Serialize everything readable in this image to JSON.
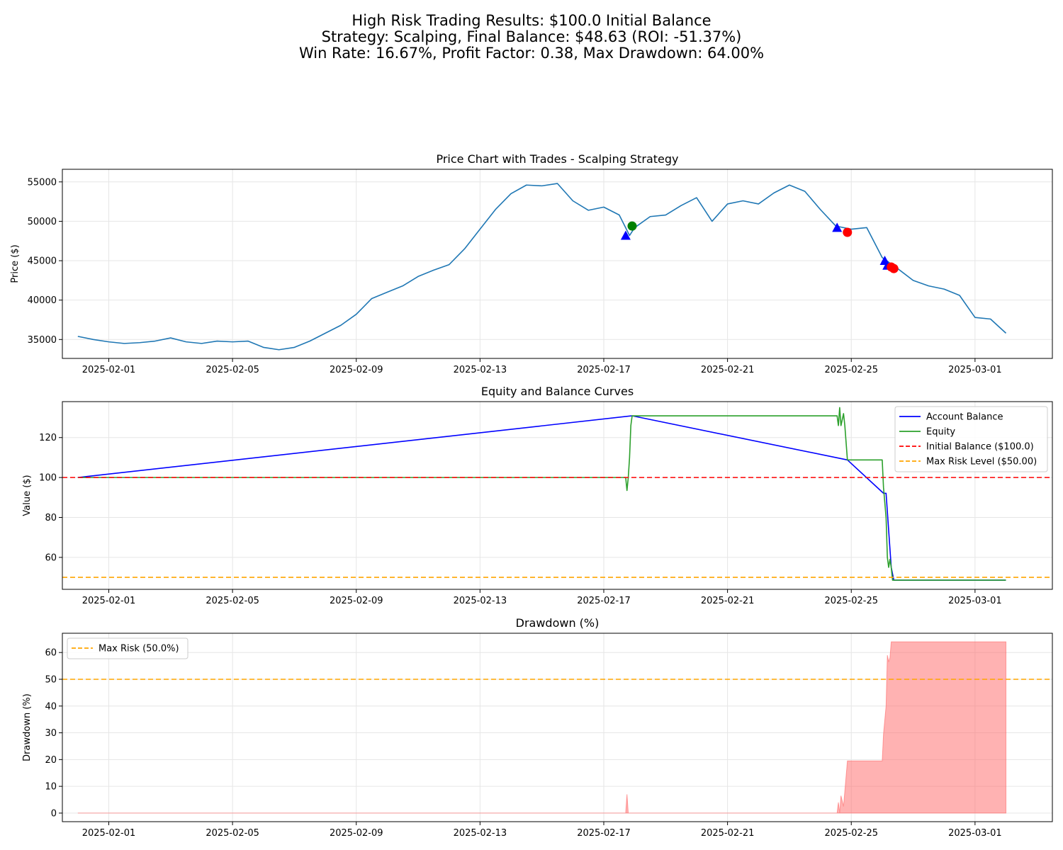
{
  "figure": {
    "title_lines": [
      "High Risk Trading Results: $100.0 Initial Balance",
      "Strategy: Scalping, Final Balance: $48.63 (ROI: -51.37%)",
      "Win Rate: 16.67%, Profit Factor: 0.38, Max Drawdown: 64.00%"
    ]
  },
  "chart_data": [
    {
      "type": "line",
      "title": "Price Chart with Trades - Scalping Strategy",
      "xlabel": "",
      "ylabel": "Price ($)",
      "xlim": [
        "2025-01-30T12:00",
        "2025-03-03T12:00"
      ],
      "ylim": [
        32600,
        56600
      ],
      "x_ticks": [
        "2025-02-01",
        "2025-02-05",
        "2025-02-09",
        "2025-02-13",
        "2025-02-17",
        "2025-02-21",
        "2025-02-25",
        "2025-03-01"
      ],
      "y_ticks": [
        35000,
        40000,
        45000,
        50000,
        55000
      ],
      "grid": true,
      "series": [
        {
          "color": "#1f77b4",
          "points": [
            [
              "2025-01-31T00:00",
              35400
            ],
            [
              "2025-01-31T12:00",
              35000
            ],
            [
              "2025-02-01T00:00",
              34700
            ],
            [
              "2025-02-01T12:00",
              34500
            ],
            [
              "2025-02-02T00:00",
              34600
            ],
            [
              "2025-02-02T12:00",
              34800
            ],
            [
              "2025-02-03T00:00",
              35200
            ],
            [
              "2025-02-03T12:00",
              34700
            ],
            [
              "2025-02-04T00:00",
              34500
            ],
            [
              "2025-02-04T12:00",
              34800
            ],
            [
              "2025-02-05T00:00",
              34700
            ],
            [
              "2025-02-05T12:00",
              34800
            ],
            [
              "2025-02-06T00:00",
              34000
            ],
            [
              "2025-02-06T12:00",
              33700
            ],
            [
              "2025-02-07T00:00",
              34000
            ],
            [
              "2025-02-07T12:00",
              34800
            ],
            [
              "2025-02-08T00:00",
              35800
            ],
            [
              "2025-02-08T12:00",
              36800
            ],
            [
              "2025-02-09T00:00",
              38200
            ],
            [
              "2025-02-09T12:00",
              40200
            ],
            [
              "2025-02-10T00:00",
              41000
            ],
            [
              "2025-02-10T12:00",
              41800
            ],
            [
              "2025-02-11T00:00",
              43000
            ],
            [
              "2025-02-11T12:00",
              43800
            ],
            [
              "2025-02-12T00:00",
              44500
            ],
            [
              "2025-02-12T12:00",
              46500
            ],
            [
              "2025-02-13T00:00",
              49000
            ],
            [
              "2025-02-13T12:00",
              51500
            ],
            [
              "2025-02-14T00:00",
              53500
            ],
            [
              "2025-02-14T12:00",
              54600
            ],
            [
              "2025-02-15T00:00",
              54500
            ],
            [
              "2025-02-15T12:00",
              54800
            ],
            [
              "2025-02-16T00:00",
              52600
            ],
            [
              "2025-02-16T12:00",
              51400
            ],
            [
              "2025-02-17T00:00",
              51800
            ],
            [
              "2025-02-17T12:00",
              50800
            ],
            [
              "2025-02-17T20:00",
              48200
            ],
            [
              "2025-02-18T00:00",
              49200
            ],
            [
              "2025-02-18T12:00",
              50600
            ],
            [
              "2025-02-19T00:00",
              50800
            ],
            [
              "2025-02-19T12:00",
              52000
            ],
            [
              "2025-02-20T00:00",
              53000
            ],
            [
              "2025-02-20T12:00",
              50000
            ],
            [
              "2025-02-21T00:00",
              52200
            ],
            [
              "2025-02-21T12:00",
              52600
            ],
            [
              "2025-02-22T00:00",
              52200
            ],
            [
              "2025-02-22T12:00",
              53600
            ],
            [
              "2025-02-23T00:00",
              54600
            ],
            [
              "2025-02-23T12:00",
              53800
            ],
            [
              "2025-02-24T00:00",
              51500
            ],
            [
              "2025-02-24T12:00",
              49400
            ],
            [
              "2025-02-25T00:00",
              49000
            ],
            [
              "2025-02-25T12:00",
              49200
            ],
            [
              "2025-02-26T00:00",
              45400
            ],
            [
              "2025-02-26T12:00",
              44000
            ],
            [
              "2025-02-27T00:00",
              42500
            ],
            [
              "2025-02-27T12:00",
              41800
            ],
            [
              "2025-02-28T00:00",
              41400
            ],
            [
              "2025-02-28T12:00",
              40600
            ],
            [
              "2025-03-01T00:00",
              37800
            ],
            [
              "2025-03-01T12:00",
              37600
            ],
            [
              "2025-03-02T00:00",
              35800
            ]
          ]
        }
      ],
      "markers": [
        {
          "marker": "triangle",
          "color": "#0000ff",
          "x": "2025-02-17T17:00",
          "y": 48200
        },
        {
          "marker": "circle",
          "color": "#008000",
          "x": "2025-02-17T22:00",
          "y": 49400
        },
        {
          "marker": "triangle",
          "color": "#0000ff",
          "x": "2025-02-24T13:00",
          "y": 49200
        },
        {
          "marker": "circle",
          "color": "#ff0000",
          "x": "2025-02-24T21:00",
          "y": 48600
        },
        {
          "marker": "triangle",
          "color": "#0000ff",
          "x": "2025-02-26T02:00",
          "y": 45000
        },
        {
          "marker": "triangle",
          "color": "#0000ff",
          "x": "2025-02-26T04:00",
          "y": 44400
        },
        {
          "marker": "circle",
          "color": "#ff0000",
          "x": "2025-02-26T07:00",
          "y": 44200
        },
        {
          "marker": "circle",
          "color": "#ff0000",
          "x": "2025-02-26T09:00",
          "y": 44000
        }
      ]
    },
    {
      "type": "line",
      "title": "Equity and Balance Curves",
      "xlabel": "",
      "ylabel": "Value ($)",
      "xlim": [
        "2025-01-30T12:00",
        "2025-03-03T12:00"
      ],
      "ylim": [
        44,
        138
      ],
      "x_ticks": [
        "2025-02-01",
        "2025-02-05",
        "2025-02-09",
        "2025-02-13",
        "2025-02-17",
        "2025-02-21",
        "2025-02-25",
        "2025-03-01"
      ],
      "y_ticks": [
        60,
        80,
        100,
        120
      ],
      "grid": true,
      "legend_position": "top-right",
      "series": [
        {
          "name": "Account Balance",
          "color": "#0000ff",
          "points": [
            [
              "2025-01-31T00:00",
              100
            ],
            [
              "2025-02-17T22:00",
              130.9
            ],
            [
              "2025-02-24T21:00",
              108.8
            ],
            [
              "2025-02-26T01:00",
              92.1
            ],
            [
              "2025-02-26T03:00",
              92.1
            ],
            [
              "2025-02-26T07:00",
              55
            ],
            [
              "2025-02-26T09:00",
              48.6
            ],
            [
              "2025-03-02T00:00",
              48.6
            ]
          ]
        },
        {
          "name": "Equity",
          "color": "#2ca02c",
          "points": [
            [
              "2025-01-31T00:00",
              100
            ],
            [
              "2025-02-17T17:00",
              100
            ],
            [
              "2025-02-17T18:00",
              93.5
            ],
            [
              "2025-02-17T19:00",
              100
            ],
            [
              "2025-02-17T20:00",
              110
            ],
            [
              "2025-02-17T21:00",
              126
            ],
            [
              "2025-02-17T22:00",
              130.9
            ],
            [
              "2025-02-24T13:00",
              130.9
            ],
            [
              "2025-02-24T14:00",
              126
            ],
            [
              "2025-02-24T15:00",
              135
            ],
            [
              "2025-02-24T16:00",
              126
            ],
            [
              "2025-02-24T18:00",
              132
            ],
            [
              "2025-02-24T19:00",
              126
            ],
            [
              "2025-02-24T21:00",
              108.8
            ],
            [
              "2025-02-26T00:00",
              108.8
            ],
            [
              "2025-02-26T01:00",
              95
            ],
            [
              "2025-02-26T03:00",
              80
            ],
            [
              "2025-02-26T04:00",
              60
            ],
            [
              "2025-02-26T05:00",
              55
            ],
            [
              "2025-02-26T06:00",
              59
            ],
            [
              "2025-02-26T07:00",
              55
            ],
            [
              "2025-02-26T08:00",
              48.6
            ],
            [
              "2025-03-02T00:00",
              48.6
            ]
          ]
        },
        {
          "name": "Initial Balance ($100.0)",
          "color": "#ff0000",
          "style": "dashed",
          "hline": 100
        },
        {
          "name": "Max Risk Level ($50.00)",
          "color": "#ffa500",
          "style": "dashed",
          "hline": 50
        }
      ]
    },
    {
      "type": "area",
      "title": "Drawdown (%)",
      "xlabel": "",
      "ylabel": "Drawdown (%)",
      "xlim": [
        "2025-01-30T12:00",
        "2025-03-03T12:00"
      ],
      "ylim": [
        -3.2,
        67.2
      ],
      "x_ticks": [
        "2025-02-01",
        "2025-02-05",
        "2025-02-09",
        "2025-02-13",
        "2025-02-17",
        "2025-02-21",
        "2025-02-25",
        "2025-03-01"
      ],
      "y_ticks": [
        0,
        10,
        20,
        30,
        40,
        50,
        60
      ],
      "grid": true,
      "legend_position": "top-left",
      "series": [
        {
          "color": "#ff6666",
          "points": [
            [
              "2025-01-31T00:00",
              0
            ],
            [
              "2025-02-17T17:00",
              0
            ],
            [
              "2025-02-17T18:00",
              7
            ],
            [
              "2025-02-17T19:00",
              0
            ],
            [
              "2025-02-24T13:00",
              0
            ],
            [
              "2025-02-24T14:00",
              4
            ],
            [
              "2025-02-24T15:00",
              0
            ],
            [
              "2025-02-24T16:00",
              6.5
            ],
            [
              "2025-02-24T18:00",
              2.5
            ],
            [
              "2025-02-24T21:00",
              19.5
            ],
            [
              "2025-02-26T00:00",
              19.5
            ],
            [
              "2025-02-26T01:00",
              29.5
            ],
            [
              "2025-02-26T03:00",
              40
            ],
            [
              "2025-02-26T04:00",
              59
            ],
            [
              "2025-02-26T05:00",
              56.5
            ],
            [
              "2025-02-26T06:00",
              58
            ],
            [
              "2025-02-26T07:00",
              64
            ],
            [
              "2025-03-02T00:00",
              64
            ]
          ]
        },
        {
          "name": "Max Risk (50.0%)",
          "color": "#ffa500",
          "style": "dashed",
          "hline": 50
        }
      ]
    }
  ]
}
